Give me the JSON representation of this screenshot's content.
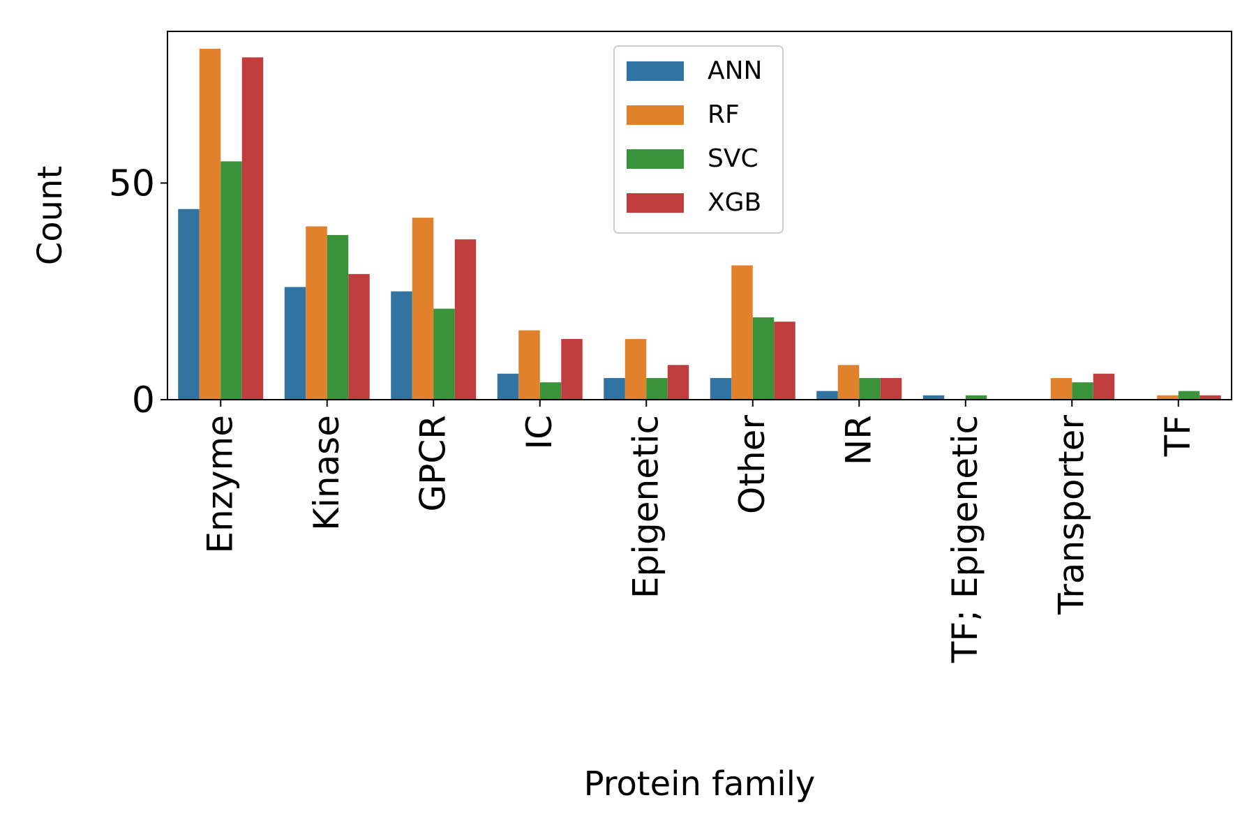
{
  "chart_data": {
    "type": "bar",
    "xlabel": "Protein family",
    "ylabel": "Count",
    "ylim": [
      0,
      85
    ],
    "yticks": [
      0,
      50
    ],
    "grid": false,
    "legend_position": "top-center",
    "categories": [
      "Enzyme",
      "Kinase",
      "GPCR",
      "IC",
      "Epigenetic",
      "Other",
      "NR",
      "TF; Epigenetic",
      "Transporter",
      "TF"
    ],
    "series": [
      {
        "name": "ANN",
        "color": "#3274a1",
        "values": [
          44,
          26,
          25,
          6,
          5,
          5,
          2,
          1,
          0,
          0
        ]
      },
      {
        "name": "RF",
        "color": "#e1812c",
        "values": [
          81,
          40,
          42,
          16,
          14,
          31,
          8,
          0,
          5,
          1
        ]
      },
      {
        "name": "SVC",
        "color": "#3a923a",
        "values": [
          55,
          38,
          21,
          4,
          5,
          19,
          5,
          1,
          4,
          2
        ]
      },
      {
        "name": "XGB",
        "color": "#c03d3e",
        "values": [
          79,
          29,
          37,
          14,
          8,
          18,
          5,
          0,
          6,
          1
        ]
      }
    ]
  }
}
